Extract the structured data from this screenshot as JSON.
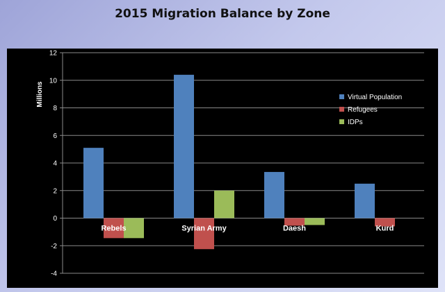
{
  "chart_data": {
    "type": "bar",
    "title": "2015 Migration Balance by Zone",
    "ylabel": "Millions",
    "xlabel": "",
    "ylim": [
      -4,
      12
    ],
    "yticks": [
      -4,
      -2,
      0,
      2,
      4,
      6,
      8,
      10,
      12
    ],
    "grid": true,
    "legend_position": "right",
    "categories": [
      "Rebels",
      "Syrian Army",
      "Daesh",
      "Kurd"
    ],
    "series": [
      {
        "name": "Virtual Population",
        "color": "#4f81bd",
        "values": [
          5.1,
          10.4,
          3.35,
          2.5
        ]
      },
      {
        "name": "Refugees",
        "color": "#c0504d",
        "values": [
          -1.45,
          -2.25,
          -0.55,
          -0.6
        ]
      },
      {
        "name": "IDPs",
        "color": "#9bbb59",
        "values": [
          -1.45,
          2.0,
          -0.5,
          0
        ]
      }
    ]
  }
}
